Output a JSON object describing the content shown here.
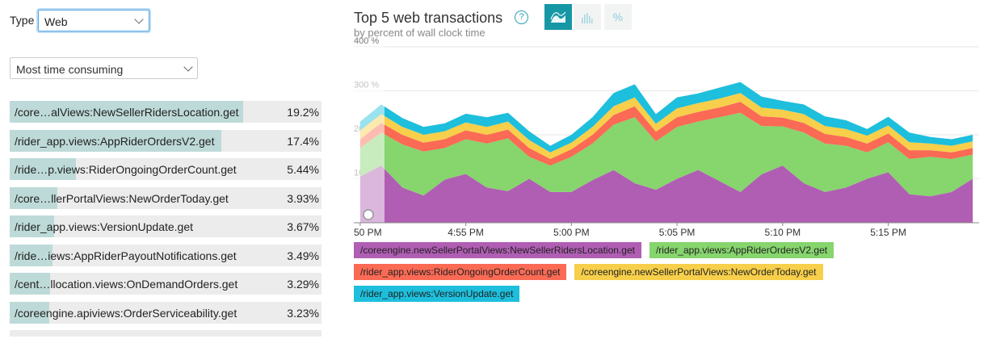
{
  "controls": {
    "type_label": "Type",
    "type_value": "Web",
    "sort_value": "Most time consuming"
  },
  "transactions": [
    {
      "name": "/core…alViews:NewSellerRidersLocation.get",
      "pct": "19.2%",
      "share": 0.192
    },
    {
      "name": "/rider_app.views:AppRiderOrdersV2.get",
      "pct": "17.4%",
      "share": 0.174
    },
    {
      "name": "/ride…p.views:RiderOngoingOrderCount.get",
      "pct": "5.44%",
      "share": 0.0544
    },
    {
      "name": "/core…llerPortalViews:NewOrderToday.get",
      "pct": "3.93%",
      "share": 0.0393
    },
    {
      "name": "/rider_app.views:VersionUpdate.get",
      "pct": "3.67%",
      "share": 0.0367
    },
    {
      "name": "/ride…iews:AppRiderPayoutNotifications.get",
      "pct": "3.49%",
      "share": 0.0349
    },
    {
      "name": "/cent…llocation.views:OnDemandOrders.get",
      "pct": "3.29%",
      "share": 0.0329
    },
    {
      "name": "/coreengine.apiviews:OrderServiceability.get",
      "pct": "3.23%",
      "share": 0.0323
    }
  ],
  "chart_header": {
    "title": "Top 5 web transactions",
    "subtitle": "by percent of wall clock time",
    "pct_button": "%"
  },
  "chart_data": {
    "type": "area",
    "stacked": true,
    "title": "Top 5 web transactions",
    "subtitle": "by percent of wall clock time",
    "ylabel": "%",
    "ylim": [
      0,
      400
    ],
    "yticks": [
      "400 %",
      "300 %",
      "200 %",
      "100 %"
    ],
    "ytick_values": [
      400,
      300,
      200,
      100
    ],
    "xlim_minutes": [
      -0.3,
      29.3
    ],
    "xticks": [
      {
        "label": "50 PM",
        "minute": 0
      },
      {
        "label": "4:55 PM",
        "minute": 5
      },
      {
        "label": "5:00 PM",
        "minute": 10
      },
      {
        "label": "5:05 PM",
        "minute": 15
      },
      {
        "label": "5:10 PM",
        "minute": 20
      },
      {
        "label": "5:15 PM",
        "minute": 25
      }
    ],
    "x_minutes": [
      0,
      1,
      2,
      3,
      4,
      5,
      6,
      7,
      8,
      9,
      10,
      11,
      12,
      13,
      14,
      15,
      16,
      17,
      18,
      19,
      20,
      21,
      22,
      23,
      24,
      25,
      26,
      27,
      28,
      29
    ],
    "series": [
      {
        "name": "/coreengine.newSellerPortalViews:NewSellerRidersLocation.get",
        "color": "#b05eb3",
        "values": [
          105,
          130,
          80,
          62,
          98,
          111,
          80,
          72,
          100,
          70,
          70,
          97,
          120,
          90,
          75,
          100,
          120,
          95,
          70,
          110,
          130,
          90,
          70,
          80,
          100,
          115,
          65,
          60,
          70,
          100
        ]
      },
      {
        "name": "/rider_app.views:AppRiderOrdersV2.get",
        "color": "#86d56d",
        "values": [
          65,
          75,
          98,
          100,
          72,
          79,
          100,
          120,
          50,
          60,
          80,
          83,
          103,
          150,
          110,
          118,
          110,
          145,
          180,
          110,
          89,
          115,
          110,
          95,
          60,
          68,
          80,
          90,
          75,
          55
        ]
      },
      {
        "name": "/rider_app.views:RiderOngoingOrderCount.get",
        "color": "#fa6a55",
        "values": [
          20,
          22,
          22,
          20,
          20,
          20,
          20,
          20,
          20,
          15,
          17,
          20,
          22,
          25,
          22,
          22,
          22,
          22,
          25,
          22,
          20,
          22,
          22,
          20,
          20,
          20,
          20,
          15,
          15,
          15
        ]
      },
      {
        "name": "/coreengine.newSellerPortalViews:NewOrderToday.get",
        "color": "#f7cf4a",
        "values": [
          20,
          20,
          18,
          18,
          18,
          18,
          18,
          18,
          18,
          15,
          15,
          18,
          20,
          20,
          18,
          20,
          20,
          20,
          20,
          20,
          18,
          20,
          18,
          18,
          18,
          18,
          18,
          15,
          15,
          15
        ]
      },
      {
        "name": "/rider_app.views:VersionUpdate.get",
        "color": "#1dbfdc",
        "values": [
          20,
          22,
          20,
          18,
          18,
          20,
          22,
          20,
          20,
          15,
          18,
          22,
          30,
          30,
          22,
          25,
          22,
          25,
          25,
          25,
          20,
          22,
          22,
          20,
          15,
          20,
          22,
          15,
          15,
          15
        ]
      }
    ]
  }
}
